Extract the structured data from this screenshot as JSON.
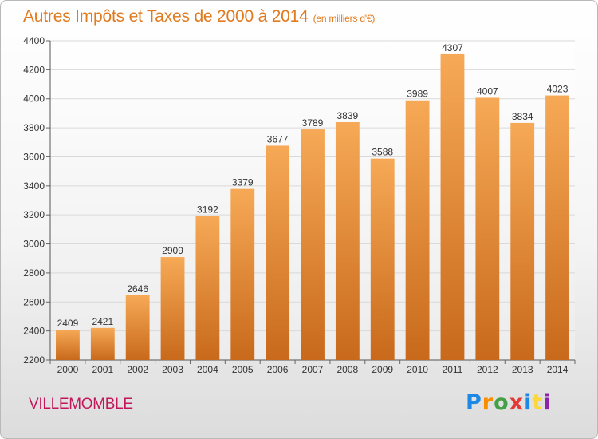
{
  "header": {
    "title": "Autres Impôts et Taxes de 2000 à 2014",
    "unit": "(en milliers d'€)"
  },
  "footer": {
    "city": "VILLEMOMBLE",
    "logo_letters": [
      "P",
      "r",
      "o",
      "x",
      "i",
      "t",
      "i"
    ],
    "logo_colors": [
      "#1e88e5",
      "#fb8c00",
      "#43a047",
      "#e53935",
      "#1e88e5",
      "#fdd835",
      "#8e24aa"
    ]
  },
  "colors": {
    "bar_top": "#f6a956",
    "bar_bottom": "#c8691b",
    "title": "#e07a1e",
    "city": "#c2185b",
    "grid": "#d9d9d9"
  },
  "chart_data": {
    "type": "bar",
    "title": "Autres Impôts et Taxes de 2000 à 2014",
    "subtitle": "(en milliers d'€)",
    "xlabel": "",
    "ylabel": "",
    "grid": true,
    "ylim": [
      2200,
      4400
    ],
    "yticks": [
      2200,
      2400,
      2600,
      2800,
      3000,
      3200,
      3400,
      3600,
      3800,
      4000,
      4200,
      4400
    ],
    "categories": [
      "2000",
      "2001",
      "2002",
      "2003",
      "2004",
      "2005",
      "2006",
      "2007",
      "2008",
      "2009",
      "2010",
      "2011",
      "2012",
      "2013",
      "2014"
    ],
    "values": [
      2409,
      2421,
      2646,
      2909,
      3192,
      3379,
      3677,
      3789,
      3839,
      3588,
      3989,
      4307,
      4007,
      3834,
      4023
    ]
  }
}
